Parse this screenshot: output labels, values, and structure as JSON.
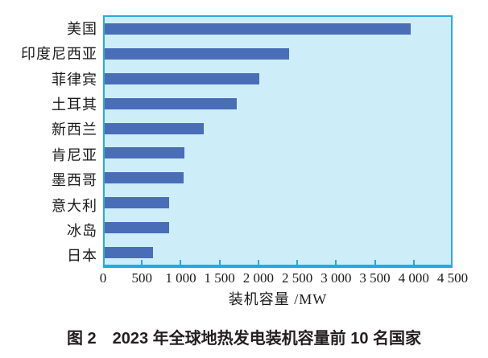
{
  "figure": {
    "caption": "图 2　2023 年全球地热发电装机容量前 10 名国家"
  },
  "chart_data": {
    "type": "bar",
    "orientation": "horizontal",
    "title": "",
    "categories": [
      "美国",
      "印度尼西亚",
      "菲律宾",
      "土耳其",
      "新西兰",
      "肯尼亚",
      "墨西哥",
      "意大利",
      "冰岛",
      "日本"
    ],
    "values": [
      3980,
      2400,
      2010,
      1720,
      1290,
      1040,
      1030,
      840,
      840,
      630
    ],
    "unit": "MW",
    "xlabel": "装机容量 /MW",
    "xlim": [
      0,
      4500
    ],
    "xtick_values": [
      0,
      500,
      1000,
      1500,
      2000,
      2500,
      3000,
      3500,
      4000,
      4500
    ],
    "xtick_labels": [
      "0",
      "500",
      "1 000",
      "1 500",
      "2 000",
      "2 500",
      "3 000",
      "3 500",
      "4 000",
      "4 500"
    ],
    "grid": false,
    "legend": "none",
    "colors": {
      "bar": "#4a6db7",
      "plot_background": "#cdeef9",
      "plot_border": "#29abe2",
      "text": "#1a1a1a"
    }
  }
}
